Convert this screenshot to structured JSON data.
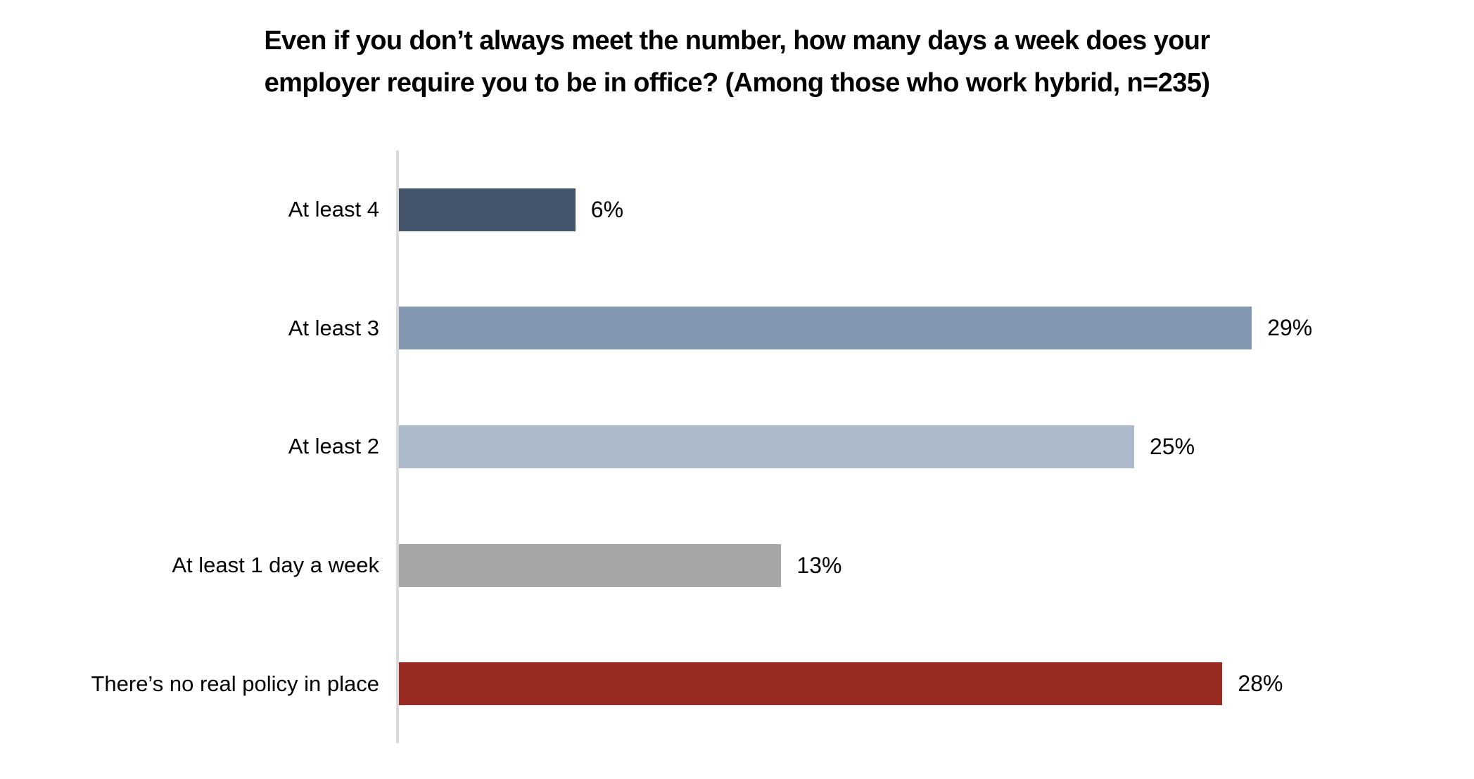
{
  "chart_data": {
    "type": "bar",
    "orientation": "horizontal",
    "title": "Even if you don’t always meet the number, how many days a week does your employer require you to be in office? (Among those who work hybrid, n=235)",
    "title_lines": [
      "Even if you don’t always meet the number, how many days a week does your",
      "employer require you to be in office? (Among those who work hybrid, n=235)"
    ],
    "categories": [
      "At least 4",
      "At least 3",
      "At least 2",
      "At least 1 day a week",
      "There’s no real policy in place"
    ],
    "values": [
      6,
      29,
      25,
      13,
      28
    ],
    "value_labels": [
      "6%",
      "29%",
      "25%",
      "13%",
      "28%"
    ],
    "xlabel": "",
    "ylabel": "",
    "xlim": [
      0,
      36
    ],
    "grid": false,
    "legend": "none",
    "data_labels": "outside-end",
    "colors": {
      "bars": [
        "#44546A",
        "#8497B0",
        "#ACB9CA",
        "#A6A6A6",
        "#9A2B22"
      ],
      "axis_line": "#D9D9D9",
      "text": "#000000",
      "background": "#FFFFFF"
    }
  }
}
